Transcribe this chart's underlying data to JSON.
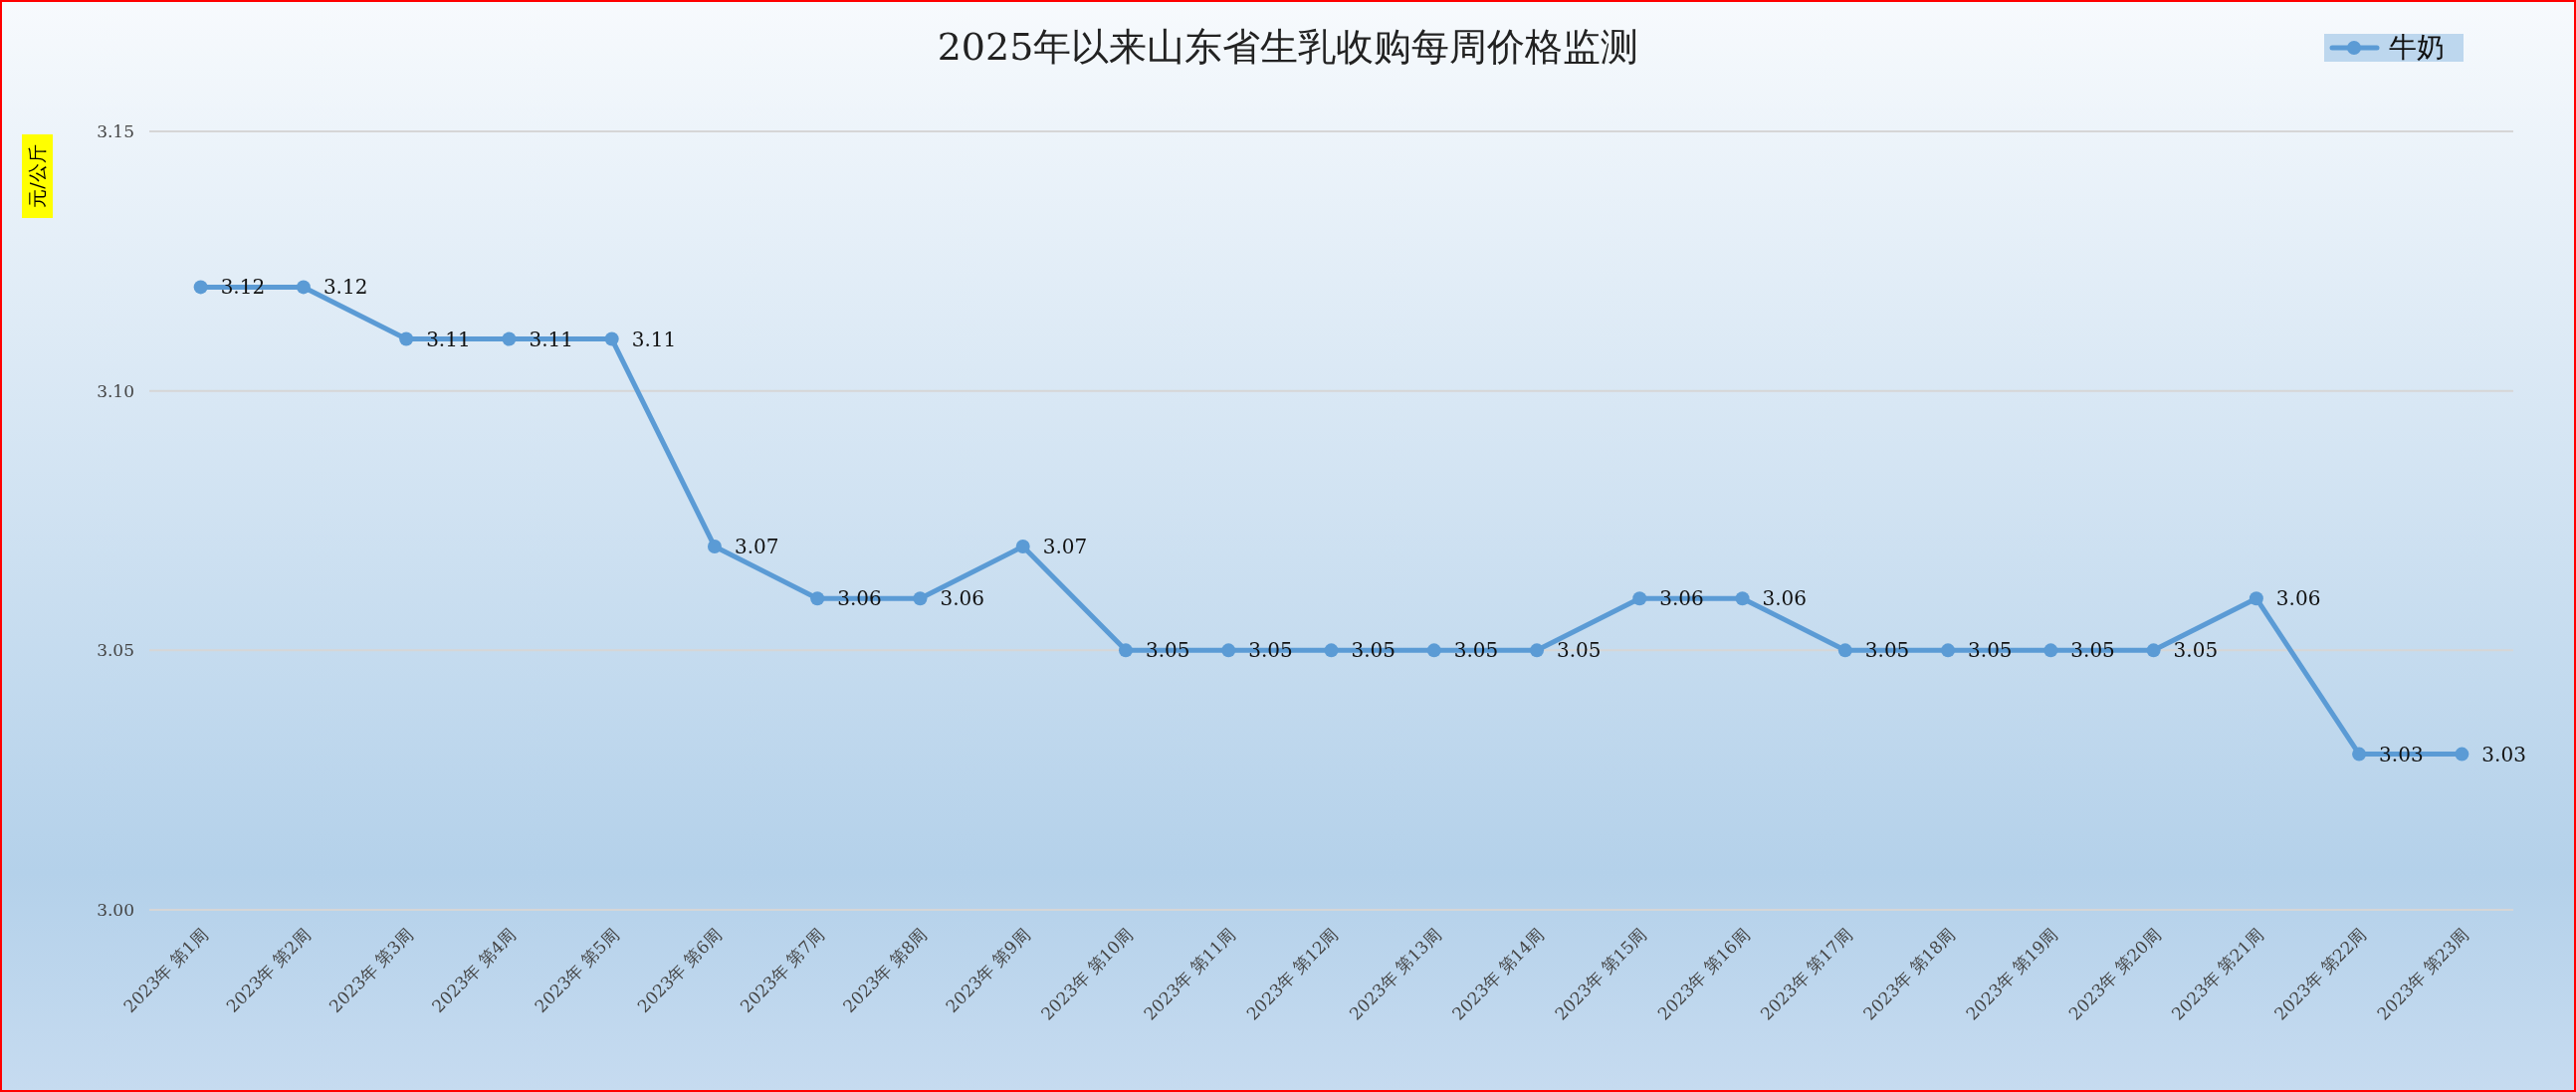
{
  "chart_data": {
    "type": "line",
    "title": "2025年以来山东省生乳收购每周价格监测",
    "ylabel": "元/公斤",
    "categories": [
      "2023年 第1周",
      "2023年 第2周",
      "2023年 第3周",
      "2023年 第4周",
      "2023年 第5周",
      "2023年 第6周",
      "2023年 第7周",
      "2023年 第8周",
      "2023年 第9周",
      "2023年 第10周",
      "2023年 第11周",
      "2023年 第12周",
      "2023年 第13周",
      "2023年 第14周",
      "2023年 第15周",
      "2023年 第16周",
      "2023年 第17周",
      "2023年 第18周",
      "2023年 第19周",
      "2023年 第20周",
      "2023年 第21周",
      "2023年 第22周",
      "2023年 第23周"
    ],
    "series": [
      {
        "name": "牛奶",
        "color": "#5b9bd5",
        "values": [
          3.12,
          3.12,
          3.11,
          3.11,
          3.11,
          3.07,
          3.06,
          3.06,
          3.07,
          3.05,
          3.05,
          3.05,
          3.05,
          3.05,
          3.06,
          3.06,
          3.05,
          3.05,
          3.05,
          3.05,
          3.06,
          3.03,
          3.03
        ]
      }
    ],
    "ylim": [
      3.0,
      3.15
    ],
    "yticks": [
      {
        "value": 3.0,
        "label": "3.00"
      },
      {
        "value": 3.05,
        "label": "3.05"
      },
      {
        "value": 3.1,
        "label": "3.10"
      },
      {
        "value": 3.15,
        "label": "3.15"
      }
    ],
    "grid": "y",
    "legend": "top right",
    "marker": "circle",
    "line_style": "solid",
    "data_labels": true
  }
}
